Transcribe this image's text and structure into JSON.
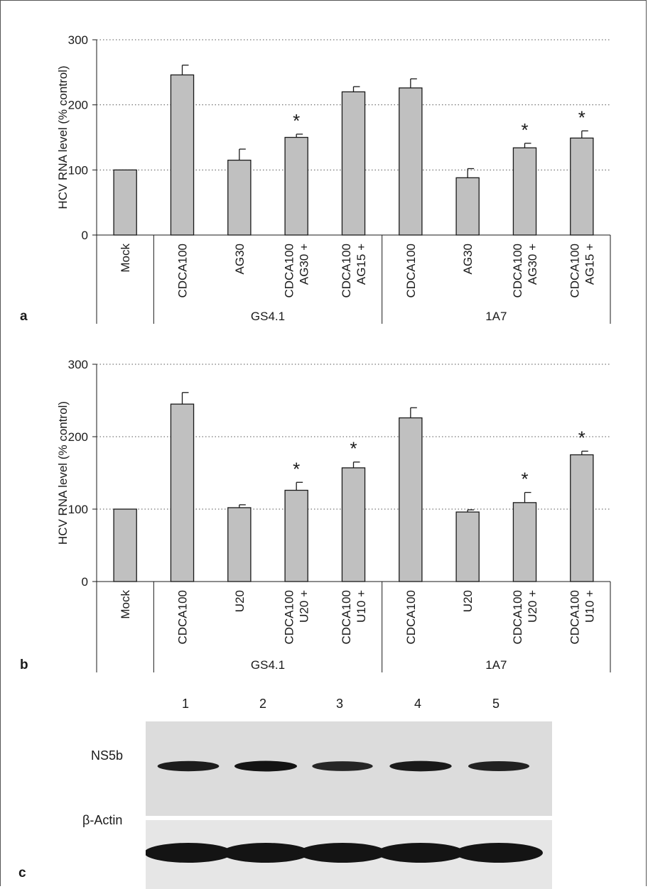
{
  "chart_data": [
    {
      "type": "bar",
      "panel": "a",
      "ylabel": "HCV RNA level (% control)",
      "ylim": [
        0,
        300
      ],
      "yticks": [
        "0",
        "100",
        "200",
        "300"
      ],
      "grid": "horizontal dotted",
      "categories": [
        "Mock",
        "CDCA100",
        "AG30",
        "AG30 + CDCA100",
        "AG15 + CDCA100",
        "CDCA100",
        "AG30",
        "AG30 + CDCA100",
        "AG15 + CDCA100"
      ],
      "category_lines": [
        [
          "Mock"
        ],
        [
          "CDCA100"
        ],
        [
          "AG30"
        ],
        [
          "AG30 +",
          "CDCA100"
        ],
        [
          "AG15 +",
          "CDCA100"
        ],
        [
          "CDCA100"
        ],
        [
          "AG30"
        ],
        [
          "AG30 +",
          "CDCA100"
        ],
        [
          "AG15 +",
          "CDCA100"
        ]
      ],
      "groups": [
        {
          "label": "",
          "span": [
            0,
            0
          ]
        },
        {
          "label": "GS4.1",
          "span": [
            1,
            4
          ]
        },
        {
          "label": "1A7",
          "span": [
            5,
            8
          ]
        }
      ],
      "values": [
        100,
        246,
        115,
        150,
        220,
        226,
        88,
        134,
        149
      ],
      "errors": [
        0,
        15,
        17,
        5,
        8,
        14,
        14,
        7,
        11
      ],
      "significant": [
        false,
        false,
        false,
        true,
        false,
        false,
        false,
        true,
        true
      ],
      "star": "*"
    },
    {
      "type": "bar",
      "panel": "b",
      "ylabel": "HCV RNA level (% control)",
      "ylim": [
        0,
        300
      ],
      "yticks": [
        "0",
        "100",
        "200",
        "300"
      ],
      "grid": "horizontal dotted",
      "categories": [
        "Mock",
        "CDCA100",
        "U20",
        "U20 + CDCA100",
        "U10 + CDCA100",
        "CDCA100",
        "U20",
        "U20 + CDCA100",
        "U10 + CDCA100"
      ],
      "category_lines": [
        [
          "Mock"
        ],
        [
          "CDCA100"
        ],
        [
          "U20"
        ],
        [
          "U20 +",
          "CDCA100"
        ],
        [
          "U10 +",
          "CDCA100"
        ],
        [
          "CDCA100"
        ],
        [
          "U20"
        ],
        [
          "U20 +",
          "CDCA100"
        ],
        [
          "U10 +",
          "CDCA100"
        ]
      ],
      "groups": [
        {
          "label": "",
          "span": [
            0,
            0
          ]
        },
        {
          "label": "GS4.1",
          "span": [
            1,
            4
          ]
        },
        {
          "label": "1A7",
          "span": [
            5,
            8
          ]
        }
      ],
      "values": [
        100,
        245,
        102,
        126,
        157,
        226,
        96,
        109,
        175
      ],
      "errors": [
        0,
        16,
        4,
        11,
        8,
        14,
        3,
        14,
        5
      ],
      "significant": [
        false,
        false,
        false,
        true,
        true,
        false,
        false,
        true,
        true
      ],
      "star": "*"
    }
  ],
  "blot": {
    "panel": "c",
    "lanes": [
      "1",
      "2",
      "3",
      "4",
      "5"
    ],
    "rows": [
      {
        "label": "NS5b",
        "band_intensity": [
          0.9,
          1.0,
          0.8,
          0.95,
          0.85
        ]
      },
      {
        "label": "β-Actin",
        "band_intensity": [
          1.0,
          1.0,
          1.0,
          1.0,
          1.0
        ]
      }
    ]
  },
  "style": {
    "bar_fill": "#c0c0c0",
    "bar_stroke": "#1a1a1a",
    "grid_color": "#555555",
    "blot_background": "#dcdcdc",
    "band_color": "#141414"
  }
}
